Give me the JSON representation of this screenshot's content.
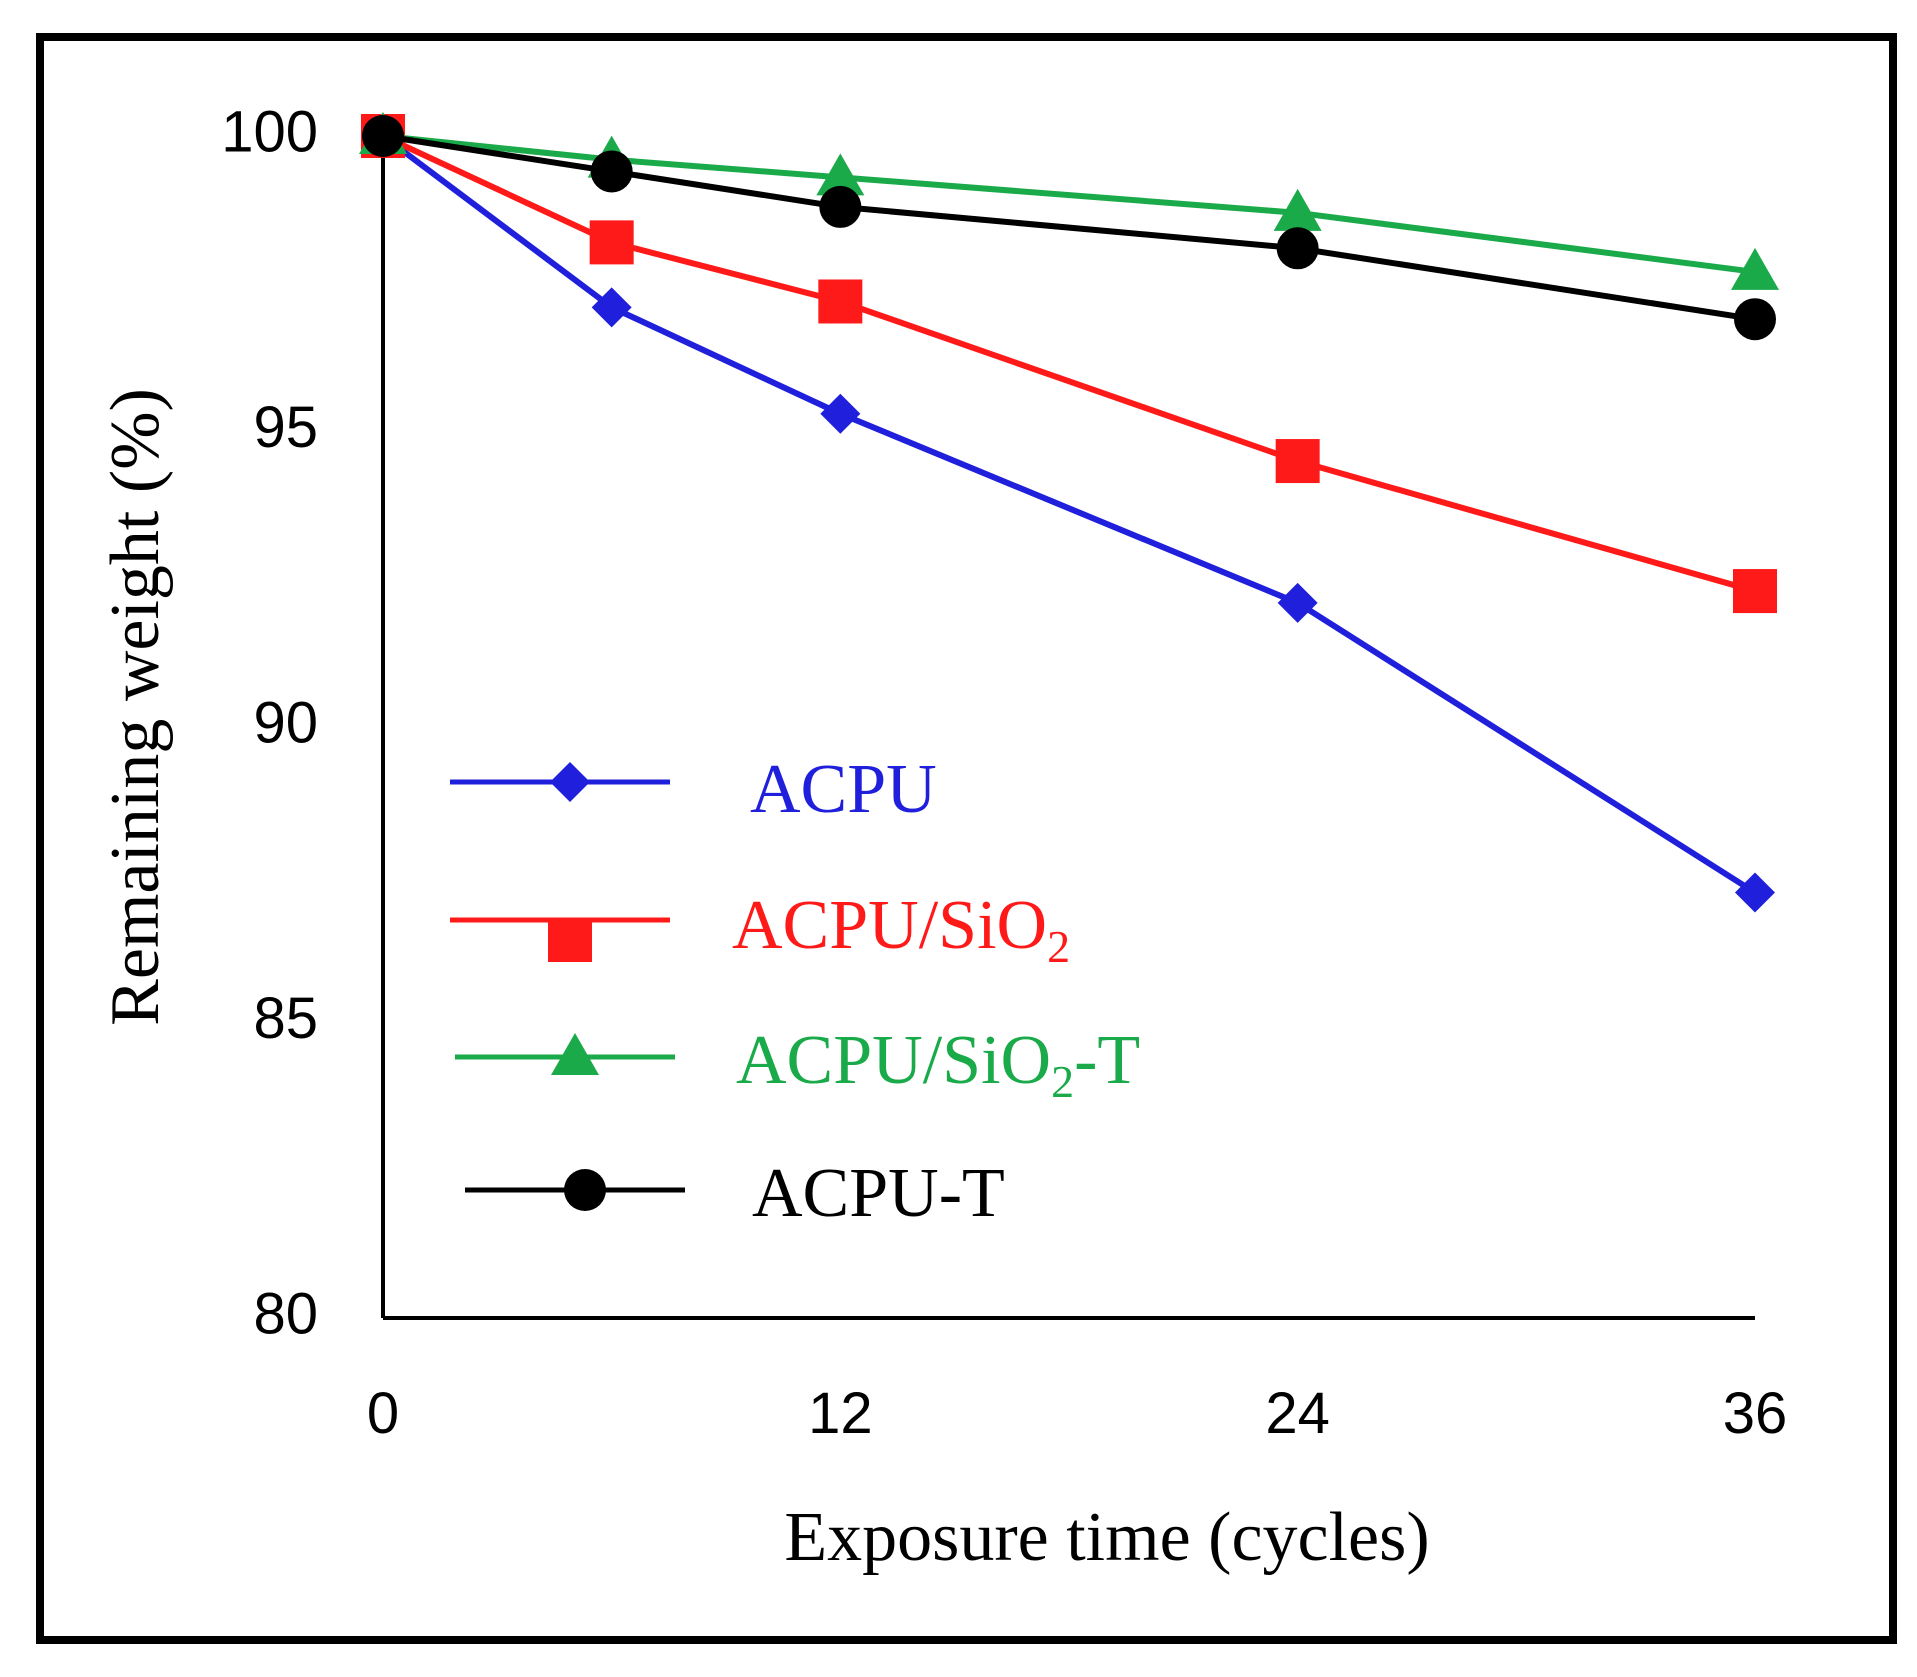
{
  "chart_data": {
    "type": "line",
    "title": "",
    "xlabel": "Exposure time (cycles)",
    "ylabel": "Remaining weight (%)",
    "x": [
      0,
      6,
      12,
      24,
      36
    ],
    "x_ticks": [
      "0",
      "12",
      "24",
      "36"
    ],
    "y_ticks": [
      "80",
      "85",
      "90",
      "95",
      "100"
    ],
    "xlim": [
      0,
      36
    ],
    "ylim": [
      80,
      100
    ],
    "grid": false,
    "legend_position": "center-left",
    "series": [
      {
        "name": "ACPU",
        "label_main": "ACPU",
        "label_sub": "",
        "label_suffix": "",
        "color": "#1f1fdc",
        "marker": "diamond",
        "values": [
          100,
          97.1,
          95.3,
          92.1,
          87.2
        ]
      },
      {
        "name": "ACPU/SiO2",
        "label_main": "ACPU/SiO",
        "label_sub": "2",
        "label_suffix": "",
        "color": "#ff1a1a",
        "marker": "square",
        "values": [
          100,
          98.2,
          97.2,
          94.5,
          92.3
        ]
      },
      {
        "name": "ACPU/SiO2-T",
        "label_main": "ACPU/SiO",
        "label_sub": "2",
        "label_suffix": "-T",
        "color": "#1aaa4a",
        "marker": "triangle",
        "values": [
          100,
          99.6,
          99.3,
          98.7,
          97.7
        ]
      },
      {
        "name": "ACPU-T",
        "label_main": "ACPU-T",
        "label_sub": "",
        "label_suffix": "",
        "color": "#000000",
        "marker": "circle",
        "values": [
          100,
          99.4,
          98.8,
          98.1,
          96.9
        ]
      }
    ]
  }
}
